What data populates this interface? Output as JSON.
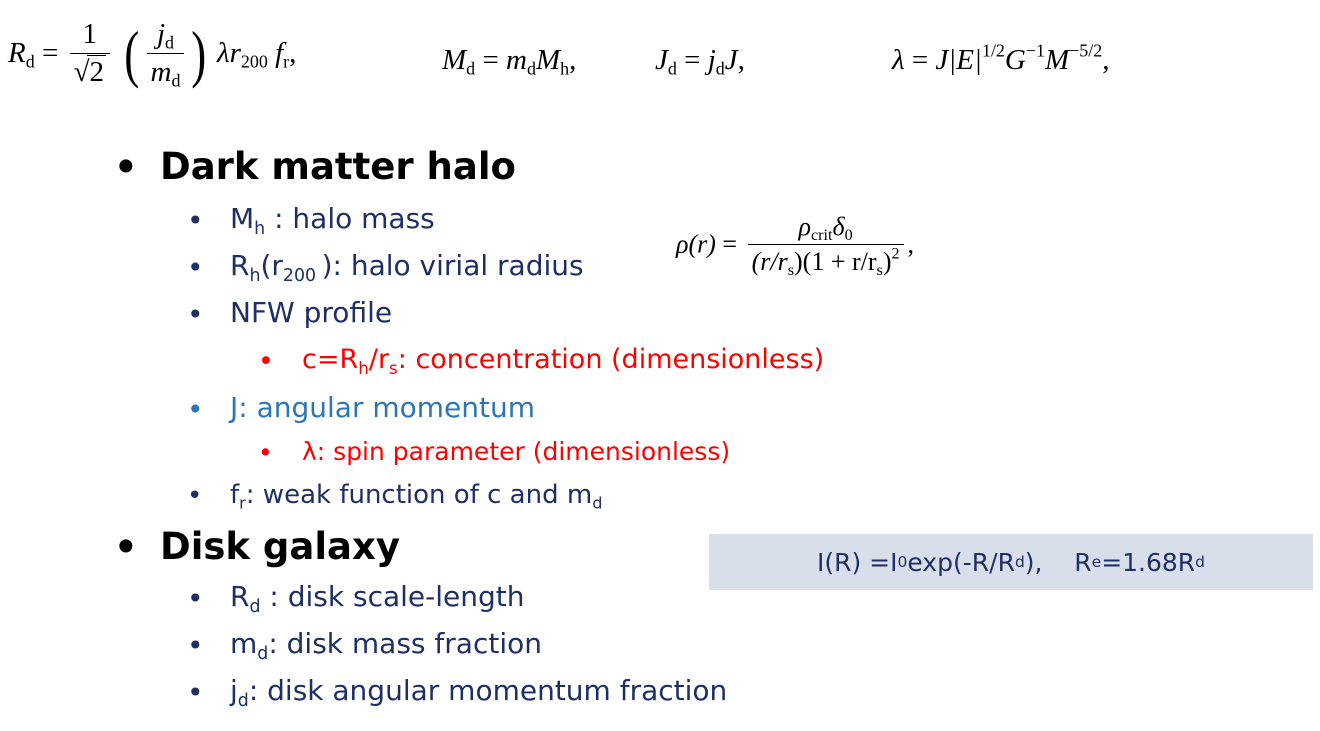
{
  "equations": {
    "rd": {
      "lhs": "R",
      "lhs_sub": "d",
      "num": "1",
      "sqrt_arg": "2",
      "j": "j",
      "j_sub": "d",
      "m": "m",
      "m_sub": "d",
      "tail_a": "λr",
      "tail_a_sub": "200",
      "tail_b": "f",
      "tail_b_sub": "r",
      "end": ","
    },
    "md": {
      "lhs": "M",
      "lhs_sub": "d",
      "rhs_a": "m",
      "rhs_a_sub": "d",
      "rhs_b": "M",
      "rhs_b_sub": "h",
      "end": ","
    },
    "jd": {
      "lhs": "J",
      "lhs_sub": "d",
      "rhs_a": "j",
      "rhs_a_sub": "d",
      "rhs_b": "J",
      "end": ","
    },
    "lambda": {
      "lhs": "λ",
      "rhs_a": "J|E|",
      "rhs_a_sup": "1/2",
      "rhs_b": "G",
      "rhs_b_sup": "−1",
      "rhs_c": "M",
      "rhs_c_sup": "−5/2",
      "end": ","
    },
    "rho": {
      "lhs": "ρ(r)",
      "num": "ρ",
      "num_sub": "crit",
      "num_b": "δ",
      "num_b_sub": "0",
      "den_a": "(r/r",
      "den_a_sub": "s",
      "den_b": ")(1 + r/r",
      "den_b_sub": "s",
      "den_c": ")",
      "den_sup": "2",
      "end": ","
    }
  },
  "sections": {
    "halo": {
      "title": "Dark matter halo",
      "mh": {
        "a": "M",
        "a_sub": "h",
        "b": " :  halo mass"
      },
      "rh": {
        "a": "R",
        "a_sub": "h",
        "b": "(r",
        "b_sub": "200 ",
        "c": "): halo virial radius"
      },
      "nfw": "NFW profile",
      "conc": {
        "a": "c=R",
        "a_sub": "h",
        "b": "/r",
        "b_sub": "s",
        "c": ":  concentration (dimensionless)"
      },
      "j": "J: angular momentum",
      "spin": "λ: spin parameter (dimensionless)",
      "fr": {
        "a": "f",
        "a_sub": "r",
        "b": ": weak function of c and m",
        "b_sub": "d"
      }
    },
    "disk": {
      "title": "Disk galaxy",
      "rd": {
        "a": "R",
        "a_sub": "d",
        "b": " :  disk scale-length"
      },
      "md": {
        "a": "m",
        "a_sub": "d",
        "b": ":  disk mass fraction"
      },
      "jd": {
        "a": "j",
        "a_sub": "d",
        "b": ":  disk angular momentum fraction"
      }
    }
  },
  "profile_box": {
    "a": "I(R) =I",
    "a_sub": "0",
    "b": "exp(-R/R",
    "b_sub": "d",
    "c": "),    R",
    "c_sub": "e",
    "d": "=1.68R",
    "d_sub": "d"
  }
}
